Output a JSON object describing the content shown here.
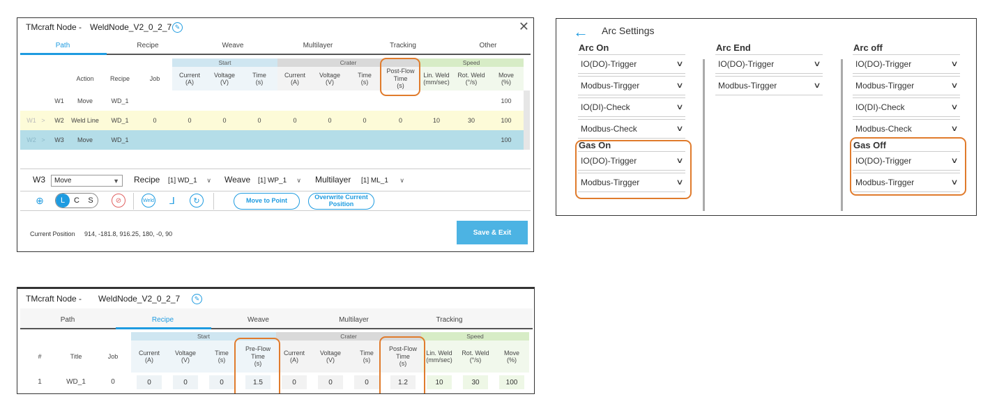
{
  "node": {
    "prefix": "TMcraft Node -",
    "name": "WeldNode_V2_0_2_7"
  },
  "path_window": {
    "tabs": [
      "Path",
      "Recipe",
      "Weave",
      "Multilayer",
      "Tracking",
      "Other"
    ],
    "active_tab": "Path",
    "group_headers": {
      "start": "Start",
      "crater": "Crater",
      "speed": "Speed"
    },
    "columns": {
      "action": "Action",
      "recipe": "Recipe",
      "job": "Job",
      "current": "Current\n(A)",
      "voltage": "Voltage\n(V)",
      "time": "Time\n(s)",
      "post_flow": "Post-Flow\nTime\n(s)",
      "lin_weld": "Lin. Weld\n(mm/sec)",
      "rot_weld": "Rot. Weld\n(°/s)",
      "move": "Move\n(%)"
    },
    "rows": [
      {
        "prefix": "",
        "sep": "",
        "id": "W1",
        "action": "Move",
        "recipe": "WD_1",
        "job": "",
        "s_current": "",
        "s_voltage": "",
        "s_time": "",
        "c_current": "",
        "c_voltage": "",
        "c_time": "",
        "post_flow": "",
        "lin": "",
        "rot": "",
        "move": "100"
      },
      {
        "prefix": "W1",
        "sep": ">",
        "id": "W2",
        "action": "Weld Line",
        "recipe": "WD_1",
        "job": "0",
        "s_current": "0",
        "s_voltage": "0",
        "s_time": "0",
        "c_current": "0",
        "c_voltage": "0",
        "c_time": "0",
        "post_flow": "0",
        "lin": "10",
        "rot": "30",
        "move": "100"
      },
      {
        "prefix": "W2",
        "sep": ">",
        "id": "W3",
        "action": "Move",
        "recipe": "WD_1",
        "job": "",
        "s_current": "",
        "s_voltage": "",
        "s_time": "",
        "c_current": "",
        "c_voltage": "",
        "c_time": "",
        "post_flow": "",
        "lin": "",
        "rot": "",
        "move": "100"
      }
    ],
    "selectors": {
      "point_label": "W3",
      "point_value": "Move",
      "recipe_label": "Recipe",
      "recipe_value": "[1] WD_1",
      "weave_label": "Weave",
      "weave_value": "[1] WP_1",
      "multilayer_label": "Multilayer",
      "multilayer_value": "[1] ML_1"
    },
    "toolbar": {
      "lcs": [
        "L",
        "C",
        "S"
      ],
      "weld_icon_text": "Weld",
      "move_to_point": "Move to Point",
      "overwrite_position": "Overwrite Current\nPosition"
    },
    "current_position_label": "Current Position",
    "current_position_value": "914, -181.8, 916.25, 180, -0, 90",
    "save_exit": "Save & Exit"
  },
  "arc_settings": {
    "title": "Arc Settings",
    "arc_on": {
      "title": "Arc On",
      "items": [
        "IO(DO)-Trigger",
        "Modbus-Tirgger",
        "IO(DI)-Check",
        "Modbus-Check"
      ]
    },
    "gas_on": {
      "title": "Gas On",
      "items": [
        "IO(DO)-Trigger",
        "Modbus-Tirgger"
      ]
    },
    "arc_end": {
      "title": "Arc End",
      "items": [
        "IO(DO)-Trigger",
        "Modbus-Tirgger"
      ]
    },
    "arc_off": {
      "title": "Arc off",
      "items": [
        "IO(DO)-Trigger",
        "Modbus-Tirgger",
        "IO(DI)-Check",
        "Modbus-Check"
      ]
    },
    "gas_off": {
      "title": "Gas Off",
      "items": [
        "IO(DO)-Trigger",
        "Modbus-Tirgger"
      ]
    }
  },
  "recipe_window": {
    "tabs": [
      "Path",
      "Recipe",
      "Weave",
      "Multilayer",
      "Tracking"
    ],
    "active_tab": "Recipe",
    "group_headers": {
      "start": "Start",
      "crater": "Crater",
      "speed": "Speed"
    },
    "columns": {
      "num": "#",
      "title": "Title",
      "job": "Job",
      "current": "Current\n(A)",
      "voltage": "Voltage\n(V)",
      "time": "Time\n(s)",
      "pre_flow": "Pre-Flow\nTime\n(s)",
      "post_flow": "Post-Flow\nTime\n(s)",
      "lin_weld": "Lin. Weld\n(mm/sec)",
      "rot_weld": "Rot. Weld\n(°/s)",
      "move": "Move\n(%)"
    },
    "row": {
      "num": "1",
      "title": "WD_1",
      "job": "0",
      "s_current": "0",
      "s_voltage": "0",
      "s_time": "0",
      "pre_flow": "1.5",
      "c_current": "0",
      "c_voltage": "0",
      "c_time": "0",
      "post_flow": "1.2",
      "lin": "10",
      "rot": "30",
      "move": "100"
    }
  },
  "colors": {
    "accent": "#1e9be0",
    "highlight": "#e07b2c",
    "start_header": "#cfe6f1",
    "crater_header": "#d9d9d9",
    "speed_header": "#d7ecc6",
    "selected_row": "#b4dde8",
    "hover_row": "#fdfbd8"
  }
}
